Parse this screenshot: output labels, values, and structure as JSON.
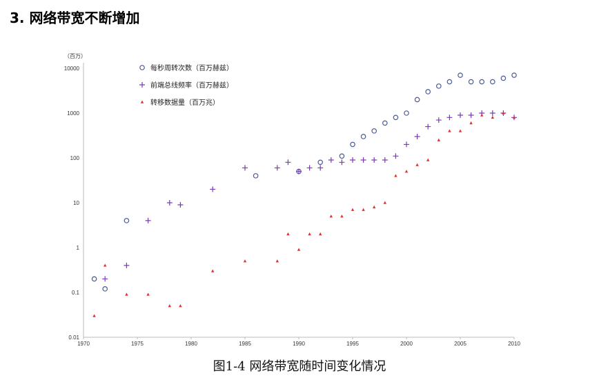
{
  "title": "3. 网络带宽不断增加",
  "caption": "图1-4 网络带宽随时间变化情况",
  "chart_data": {
    "type": "scatter",
    "title": "",
    "ylabel": "（百万）",
    "xlabel": "",
    "xlim": [
      1970,
      2010
    ],
    "ylim": [
      0.01,
      10000
    ],
    "yscale": "log",
    "xticks": [
      "1970",
      "1975",
      "1980",
      "1985",
      "1990",
      "1995",
      "2000",
      "2005",
      "2010"
    ],
    "yticks": [
      "0.01",
      "0.1",
      "1",
      "10",
      "100",
      "1000",
      "10000"
    ],
    "legend_position": "top-left",
    "series": [
      {
        "name": "每秒周转次数（百万赫兹）",
        "marker": "circle",
        "color": "#4a5a9a",
        "points": [
          [
            1971,
            0.2
          ],
          [
            1972,
            0.12
          ],
          [
            1974,
            4
          ],
          [
            1986,
            40
          ],
          [
            1990,
            50
          ],
          [
            1992,
            80
          ],
          [
            1994,
            110
          ],
          [
            1995,
            200
          ],
          [
            1996,
            300
          ],
          [
            1997,
            400
          ],
          [
            1998,
            600
          ],
          [
            1999,
            800
          ],
          [
            2000,
            1000
          ],
          [
            2001,
            2000
          ],
          [
            2002,
            3000
          ],
          [
            2003,
            4000
          ],
          [
            2004,
            5000
          ],
          [
            2005,
            7000
          ],
          [
            2006,
            5000
          ],
          [
            2007,
            5000
          ],
          [
            2008,
            5000
          ],
          [
            2009,
            6000
          ],
          [
            2010,
            7000
          ]
        ]
      },
      {
        "name": "前端总线频率（百万赫兹）",
        "marker": "plus",
        "color": "#7a3ab8",
        "points": [
          [
            1972,
            0.2
          ],
          [
            1974,
            0.4
          ],
          [
            1976,
            4
          ],
          [
            1978,
            10
          ],
          [
            1979,
            9
          ],
          [
            1982,
            20
          ],
          [
            1985,
            60
          ],
          [
            1988,
            60
          ],
          [
            1989,
            80
          ],
          [
            1990,
            50
          ],
          [
            1991,
            60
          ],
          [
            1992,
            60
          ],
          [
            1993,
            90
          ],
          [
            1994,
            80
          ],
          [
            1995,
            90
          ],
          [
            1996,
            90
          ],
          [
            1997,
            90
          ],
          [
            1998,
            90
          ],
          [
            1999,
            110
          ],
          [
            2000,
            200
          ],
          [
            2001,
            300
          ],
          [
            2002,
            500
          ],
          [
            2003,
            700
          ],
          [
            2004,
            800
          ],
          [
            2005,
            900
          ],
          [
            2006,
            900
          ],
          [
            2007,
            1000
          ],
          [
            2008,
            1000
          ],
          [
            2009,
            1000
          ],
          [
            2010,
            800
          ]
        ]
      },
      {
        "name": "转移数据量（百万兆）",
        "marker": "triangle",
        "color": "#e03030",
        "points": [
          [
            1971,
            0.03
          ],
          [
            1972,
            0.4
          ],
          [
            1974,
            0.09
          ],
          [
            1976,
            0.09
          ],
          [
            1978,
            0.05
          ],
          [
            1979,
            0.05
          ],
          [
            1982,
            0.3
          ],
          [
            1985,
            0.5
          ],
          [
            1988,
            0.5
          ],
          [
            1989,
            2
          ],
          [
            1990,
            0.9
          ],
          [
            1991,
            2
          ],
          [
            1992,
            2
          ],
          [
            1993,
            5
          ],
          [
            1994,
            5
          ],
          [
            1995,
            7
          ],
          [
            1996,
            7
          ],
          [
            1997,
            8
          ],
          [
            1998,
            10
          ],
          [
            1999,
            40
          ],
          [
            2000,
            50
          ],
          [
            2001,
            70
          ],
          [
            2002,
            90
          ],
          [
            2003,
            250
          ],
          [
            2004,
            400
          ],
          [
            2005,
            400
          ],
          [
            2006,
            600
          ],
          [
            2007,
            900
          ],
          [
            2008,
            800
          ],
          [
            2009,
            1000
          ],
          [
            2010,
            800
          ]
        ]
      }
    ]
  }
}
